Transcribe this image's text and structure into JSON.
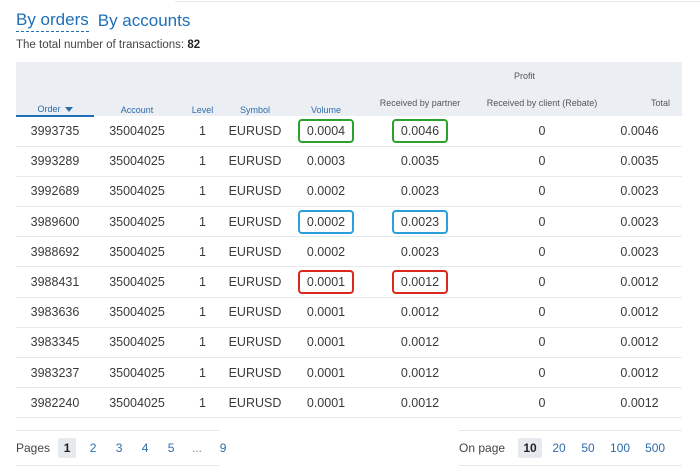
{
  "tabs": [
    "By orders",
    "By accounts"
  ],
  "total": {
    "label": "The total number of transactions:",
    "value": "82"
  },
  "table": {
    "headers": {
      "order": "Order",
      "account": "Account",
      "level": "Level",
      "symbol": "Symbol",
      "volume": "Volume",
      "profit": "Profit",
      "received_partner": "Received by partner",
      "received_client": "Received by client (Rebate)",
      "total": "Total"
    },
    "rows": [
      {
        "order": "3993735",
        "account": "35004025",
        "level": "1",
        "symbol": "EURUSD",
        "volume": "0.0004",
        "partner": "0.0046",
        "client": "0",
        "total": "0.0046",
        "highlight": "green"
      },
      {
        "order": "3993289",
        "account": "35004025",
        "level": "1",
        "symbol": "EURUSD",
        "volume": "0.0003",
        "partner": "0.0035",
        "client": "0",
        "total": "0.0035",
        "highlight": ""
      },
      {
        "order": "3992689",
        "account": "35004025",
        "level": "1",
        "symbol": "EURUSD",
        "volume": "0.0002",
        "partner": "0.0023",
        "client": "0",
        "total": "0.0023",
        "highlight": ""
      },
      {
        "order": "3989600",
        "account": "35004025",
        "level": "1",
        "symbol": "EURUSD",
        "volume": "0.0002",
        "partner": "0.0023",
        "client": "0",
        "total": "0.0023",
        "highlight": "blue"
      },
      {
        "order": "3988692",
        "account": "35004025",
        "level": "1",
        "symbol": "EURUSD",
        "volume": "0.0002",
        "partner": "0.0023",
        "client": "0",
        "total": "0.0023",
        "highlight": ""
      },
      {
        "order": "3988431",
        "account": "35004025",
        "level": "1",
        "symbol": "EURUSD",
        "volume": "0.0001",
        "partner": "0.0012",
        "client": "0",
        "total": "0.0012",
        "highlight": "red"
      },
      {
        "order": "3983636",
        "account": "35004025",
        "level": "1",
        "symbol": "EURUSD",
        "volume": "0.0001",
        "partner": "0.0012",
        "client": "0",
        "total": "0.0012",
        "highlight": ""
      },
      {
        "order": "3983345",
        "account": "35004025",
        "level": "1",
        "symbol": "EURUSD",
        "volume": "0.0001",
        "partner": "0.0012",
        "client": "0",
        "total": "0.0012",
        "highlight": ""
      },
      {
        "order": "3983237",
        "account": "35004025",
        "level": "1",
        "symbol": "EURUSD",
        "volume": "0.0001",
        "partner": "0.0012",
        "client": "0",
        "total": "0.0012",
        "highlight": ""
      },
      {
        "order": "3982240",
        "account": "35004025",
        "level": "1",
        "symbol": "EURUSD",
        "volume": "0.0001",
        "partner": "0.0012",
        "client": "0",
        "total": "0.0012",
        "highlight": ""
      }
    ]
  },
  "pagination": {
    "label": "Pages",
    "pages": [
      "1",
      "2",
      "3",
      "4",
      "5",
      "...",
      "9"
    ],
    "current": "1"
  },
  "per_page": {
    "label": "On page",
    "options": [
      "10",
      "20",
      "50",
      "100",
      "500"
    ],
    "current": "10"
  },
  "colors": {
    "accent": "#1e6fb8",
    "green": "#2ca02c",
    "blue": "#2a9fdc",
    "red": "#d9281e"
  }
}
